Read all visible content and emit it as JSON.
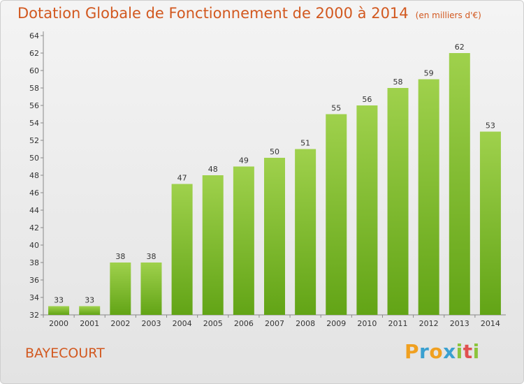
{
  "title": "Dotation Globale de Fonctionnement de 2000 à 2014",
  "unit_note": "(en milliers d'€)",
  "commune": "BAYECOURT",
  "logo": {
    "letters": [
      "P",
      "r",
      "o",
      "x",
      "i",
      "t",
      "i"
    ],
    "colors": [
      "#f0a020",
      "#3aa0d0",
      "#f0a020",
      "#3aa0d0",
      "#8cc43c",
      "#e05050",
      "#8cc43c"
    ]
  },
  "colors": {
    "title": "#d2581f",
    "bar_light": "#9fd14c",
    "bar_dark": "#62a416"
  },
  "chart_data": {
    "type": "bar",
    "title": "Dotation Globale de Fonctionnement de 2000 à 2014",
    "subtitle": "(en milliers d'€)",
    "categories": [
      "2000",
      "2001",
      "2002",
      "2003",
      "2004",
      "2005",
      "2006",
      "2007",
      "2008",
      "2009",
      "2010",
      "2011",
      "2012",
      "2013",
      "2014"
    ],
    "values": [
      33,
      33,
      38,
      38,
      47,
      48,
      49,
      50,
      51,
      55,
      56,
      58,
      59,
      62,
      53
    ],
    "ylim": [
      32,
      64
    ],
    "yticks": [
      32,
      34,
      36,
      38,
      40,
      42,
      44,
      46,
      48,
      50,
      52,
      54,
      56,
      58,
      60,
      62,
      64
    ],
    "grid": false,
    "legend": "none"
  }
}
